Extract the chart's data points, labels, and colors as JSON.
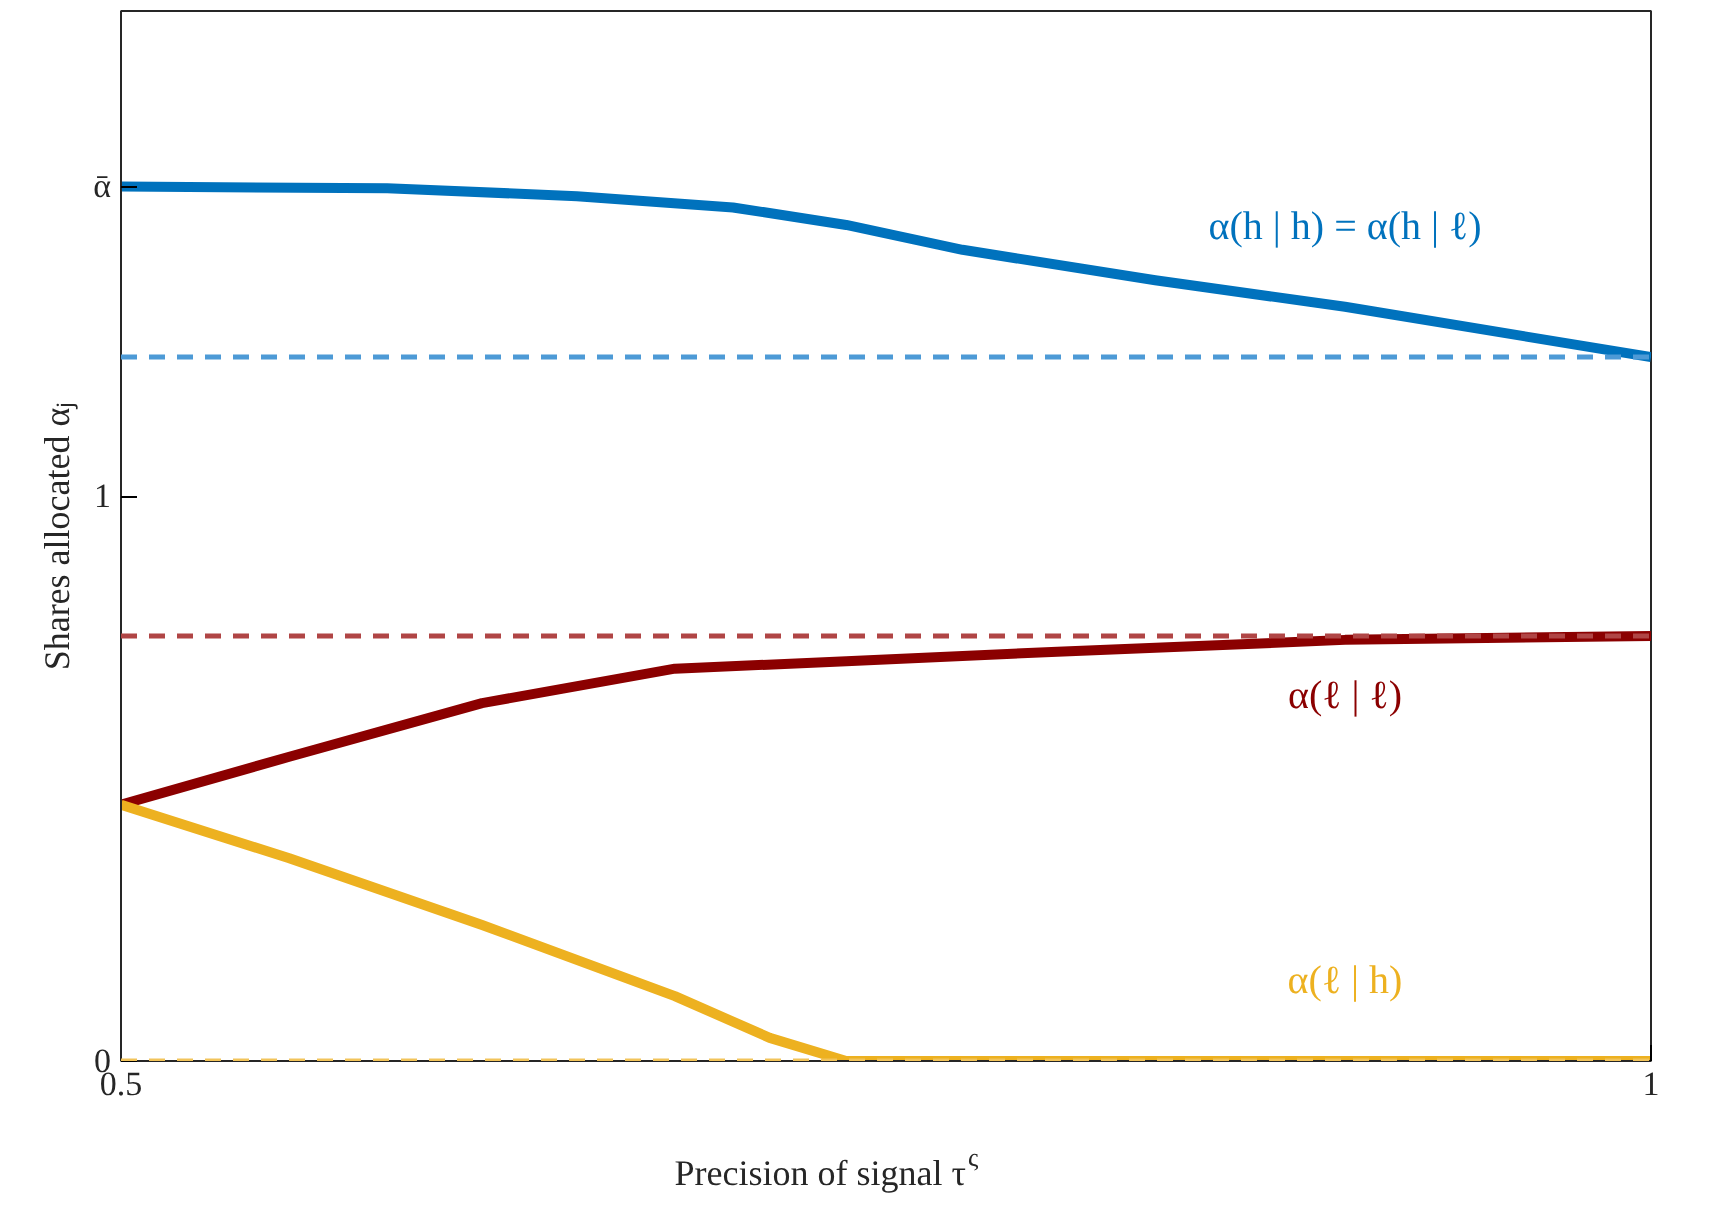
{
  "chart_data": {
    "type": "line",
    "xlabel": "Precision of signal τ$^{ς}$",
    "ylabel": "Shares allocated αⱼ",
    "xlim": [
      0.5,
      1
    ],
    "ylim": [
      0,
      1.86
    ],
    "xticks": [
      0.5,
      1
    ],
    "yticks": [
      0,
      1,
      {
        "value": 1.55,
        "label": "ᾱ"
      }
    ],
    "grid": false,
    "line_style": "solid",
    "series": [
      {
        "name": "α(h | h) = α(h | ℓ)",
        "color": "#0072bd",
        "x": [
          0.5,
          0.587,
          0.649,
          0.7,
          0.737,
          0.775,
          0.838,
          0.9,
          1.0
        ],
        "values": [
          1.549,
          1.546,
          1.532,
          1.512,
          1.481,
          1.437,
          1.383,
          1.336,
          1.247
        ]
      },
      {
        "name": "α(ℓ | ℓ)",
        "color": "#8b0000",
        "x": [
          0.5,
          0.555,
          0.618,
          0.681,
          0.737,
          0.806,
          0.9,
          1.0
        ],
        "values": [
          0.454,
          0.539,
          0.634,
          0.695,
          0.708,
          0.725,
          0.746,
          0.753
        ]
      },
      {
        "name": "α(ℓ | h)",
        "color": "#edb120",
        "x": [
          0.5,
          0.555,
          0.618,
          0.681,
          0.712,
          0.737,
          1.0
        ],
        "values": [
          0.454,
          0.359,
          0.241,
          0.115,
          0.041,
          0,
          0
        ]
      }
    ],
    "ref_lines": [
      {
        "axis": "y",
        "value": 1.247,
        "color": "#4d9ad6",
        "line_style": "dashed"
      },
      {
        "axis": "y",
        "value": 0.753,
        "color": "#b04545",
        "line_style": "dashed"
      },
      {
        "axis": "y",
        "value": 0,
        "color": "#f2c45a",
        "line_style": "dashed"
      }
    ]
  }
}
